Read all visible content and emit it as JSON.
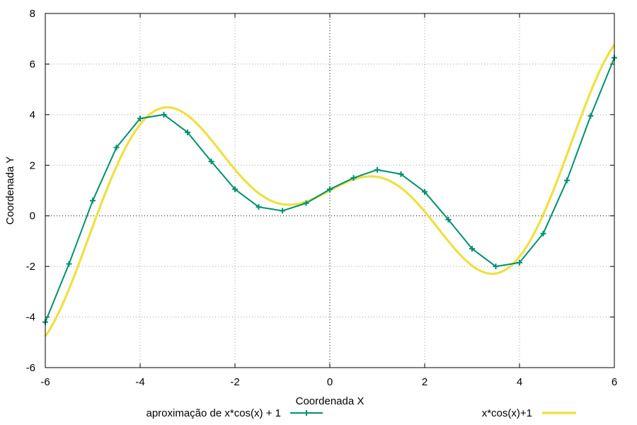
{
  "chart_data": {
    "type": "line",
    "xlabel": "Coordenada X",
    "ylabel": "Coordenada Y",
    "xlim": [
      -6,
      6
    ],
    "ylim": [
      -6,
      8
    ],
    "xticks": [
      -6,
      -4,
      -2,
      0,
      2,
      4,
      6
    ],
    "yticks": [
      -6,
      -4,
      -2,
      0,
      2,
      4,
      6,
      8
    ],
    "xtick_labels": [
      "-6",
      "-4",
      "-2",
      "0",
      "2",
      "4",
      "6"
    ],
    "ytick_labels": [
      "-6",
      "-4",
      "-2",
      "0",
      "2",
      "4",
      "6",
      "8"
    ],
    "grid": true,
    "legend_position": "bottom",
    "series": [
      {
        "name": "aproximação de x*cos(x) + 1",
        "color": "#009070",
        "marker": "plus",
        "x": [
          -6,
          -5.5,
          -5,
          -4.5,
          -4,
          -3.5,
          -3,
          -2.5,
          -2,
          -1.5,
          -1,
          -0.5,
          0,
          0.5,
          1,
          1.5,
          2,
          2.5,
          3,
          3.5,
          4,
          4.5,
          5,
          5.5,
          6
        ],
        "y": [
          -4.2,
          -1.9,
          0.6,
          2.7,
          3.85,
          4.0,
          3.3,
          2.15,
          1.05,
          0.35,
          0.2,
          0.5,
          1.05,
          1.5,
          1.82,
          1.65,
          0.95,
          -0.15,
          -1.3,
          -2.0,
          -1.85,
          -0.7,
          1.4,
          3.95,
          6.25
        ]
      },
      {
        "name": "x*cos(x)+1",
        "color": "#f0e040",
        "function": "x*cos(x)+1"
      }
    ]
  }
}
